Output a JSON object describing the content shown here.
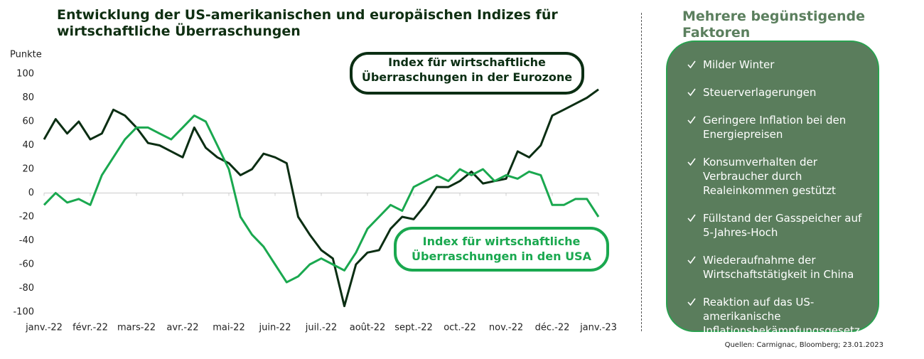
{
  "chart_data": {
    "type": "line",
    "title": "Entwicklung der US-amerikanischen und europäischen Indizes für wirtschaftliche Überraschungen",
    "y_label": "Punkte",
    "categories": [
      "janv.-22",
      null,
      null,
      null,
      "févr.-22",
      null,
      null,
      null,
      "mars-22",
      null,
      null,
      null,
      "avr.-22",
      null,
      null,
      null,
      "mai-22",
      null,
      null,
      null,
      "juin-22",
      null,
      null,
      null,
      "juil.-22",
      null,
      null,
      null,
      "août-22",
      null,
      null,
      null,
      "sept.-22",
      null,
      null,
      null,
      "oct.-22",
      null,
      null,
      null,
      "nov.-22",
      null,
      null,
      null,
      "déc.-22",
      null,
      null,
      null,
      "janv.-23"
    ],
    "series": [
      {
        "name": "Index für wirtschaftliche Überraschungen in der Eurozone",
        "color": "#0b2e13",
        "values": [
          45,
          62,
          50,
          60,
          45,
          50,
          70,
          65,
          55,
          42,
          40,
          35,
          30,
          55,
          38,
          30,
          25,
          15,
          20,
          33,
          30,
          25,
          -20,
          -35,
          -48,
          -55,
          -95,
          -60,
          -50,
          -48,
          -30,
          -20,
          -22,
          -10,
          5,
          5,
          10,
          18,
          8,
          10,
          12,
          35,
          30,
          40,
          65,
          70,
          75,
          80,
          87
        ]
      },
      {
        "name": "Index für wirtschaftliche Überraschungen in den USA",
        "color": "#1aa84f",
        "values": [
          -10,
          0,
          -8,
          -5,
          -10,
          15,
          30,
          45,
          55,
          55,
          50,
          45,
          55,
          65,
          60,
          40,
          20,
          -20,
          -35,
          -45,
          -60,
          -75,
          -70,
          -60,
          -55,
          -60,
          -65,
          -50,
          -30,
          -20,
          -10,
          -15,
          5,
          10,
          15,
          10,
          20,
          15,
          20,
          10,
          15,
          12,
          18,
          15,
          -10,
          -10,
          -5,
          -5,
          -20
        ]
      }
    ],
    "ylim": [
      -100,
      100
    ],
    "yticks": [
      -100,
      -80,
      -60,
      -40,
      -20,
      0,
      20,
      40,
      60,
      80,
      100
    ],
    "grid": false
  },
  "panel": {
    "title": "Mehrere begünstigende Faktoren",
    "items": [
      "Milder Winter",
      "Steuerverlagerungen",
      "Geringere Inflation bei den Energiepreisen",
      "Konsumverhalten der Verbraucher durch Realeinkommen gestützt",
      "Füllstand der Gasspeicher auf 5-Jahres-Hoch",
      "Wiederaufnahme der Wirtschaftstätigkeit in China",
      "Reaktion auf das US-amerikanische Inflationsbekämpfungsgesetz"
    ]
  },
  "source": "Quellen: Carmignac, Bloomberg; 23.01.2023"
}
